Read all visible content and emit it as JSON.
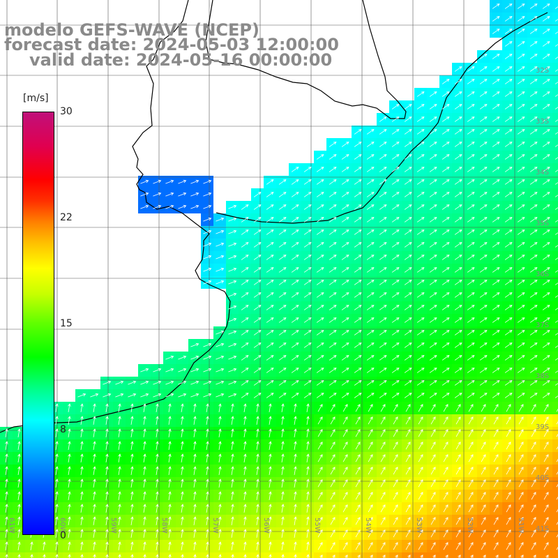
{
  "title": {
    "line1": "modelo GEFS-WAVE (NCEP)",
    "line2": "forecast date: 2024-05-03 12:00:00",
    "line3": "valid date: 2024-05-16 00:00:00"
  },
  "colorbar": {
    "unit": "[m/s]",
    "ticks": [
      "30",
      "22",
      "15",
      "8",
      "0"
    ],
    "tick_values": [
      30,
      22,
      15,
      8,
      0
    ]
  },
  "lat_labels": [
    "32S",
    "33S",
    "34S",
    "35S",
    "36S",
    "37S",
    "38S",
    "39S",
    "40S",
    "41S"
  ],
  "lon_labels": [
    "61W",
    "60W",
    "59W",
    "58W",
    "57W",
    "56W",
    "55W",
    "54W",
    "53W",
    "52W",
    "51W"
  ],
  "chart_data": {
    "type": "heatmap",
    "title": "",
    "variable": "wind speed and direction",
    "units": "m/s",
    "color_scale": {
      "min": 0,
      "max": 30
    },
    "lat_range": [
      "41S",
      "31S"
    ],
    "lon_range": [
      "61W",
      "50W"
    ],
    "grid": true,
    "legend": "left"
  },
  "colors": {
    "title": "#8a8a8a",
    "coastline": "#000000",
    "grid": "#555555",
    "arrow": "#ffffff"
  }
}
